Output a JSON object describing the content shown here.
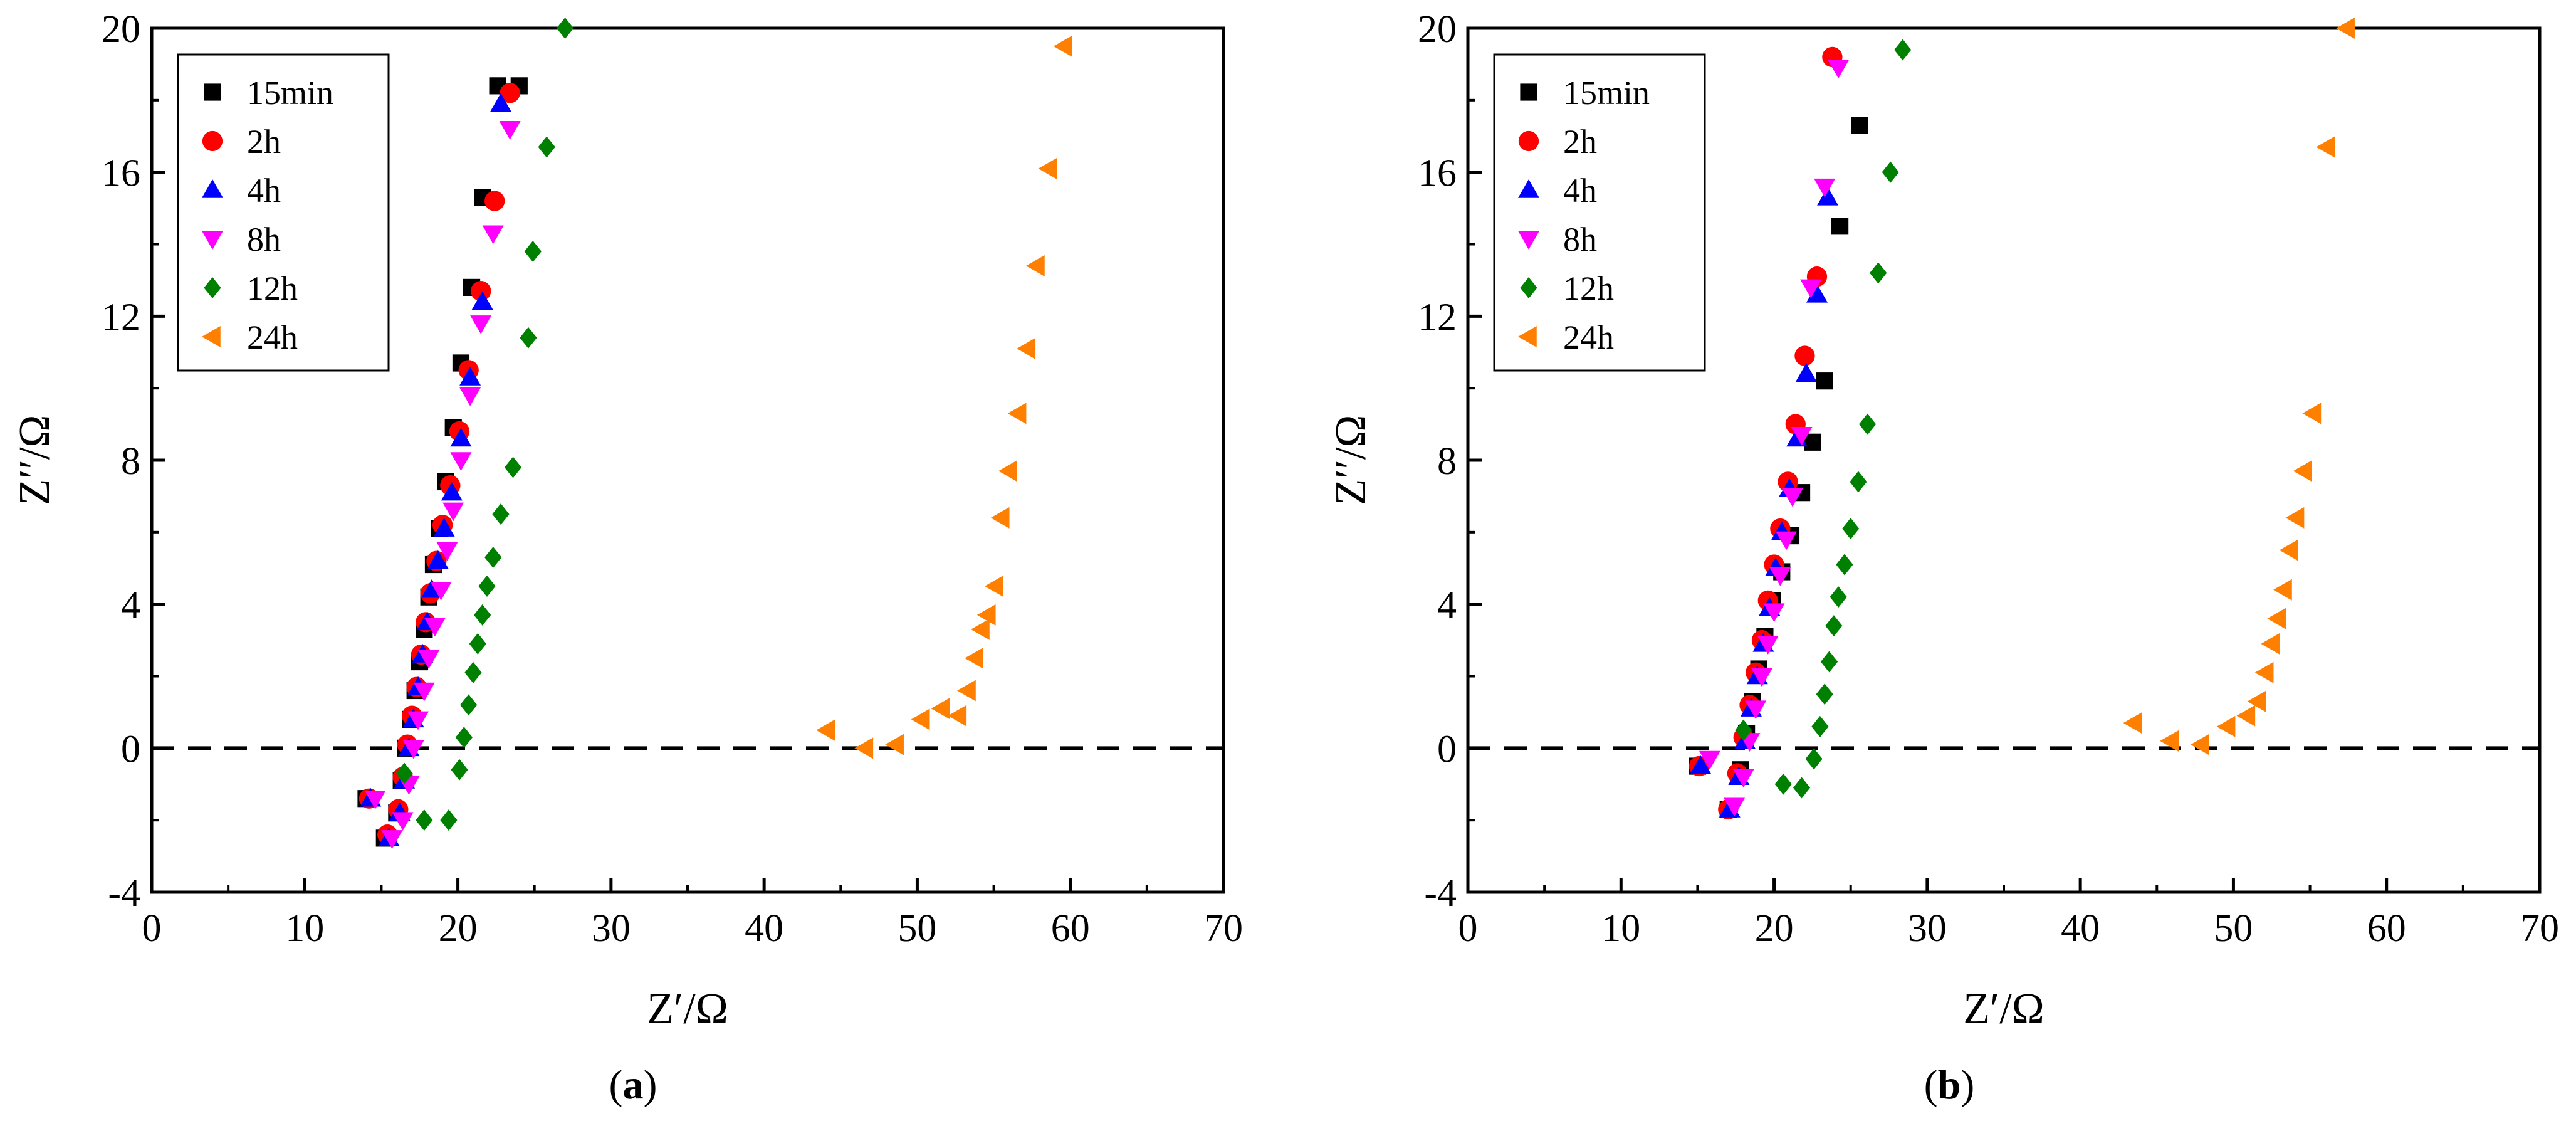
{
  "figure": {
    "panels": [
      "a",
      "b"
    ]
  },
  "chart_data": [
    {
      "type": "scatter",
      "panel_label": "(a)",
      "panel_letter": "a",
      "xlabel": "Z′/Ω",
      "ylabel": "Z′′/Ω",
      "xlim": [
        0,
        70
      ],
      "ylim": [
        -4,
        20
      ],
      "xticks": [
        0,
        10,
        20,
        30,
        40,
        50,
        60,
        70
      ],
      "yticks": [
        -4,
        0,
        4,
        8,
        12,
        16,
        20
      ],
      "reference_line": {
        "y": 0,
        "style": "dashed"
      },
      "legend": [
        "15min",
        "2h",
        "4h",
        "8h",
        "12h",
        "24h"
      ],
      "series": [
        {
          "name": "15min",
          "marker": "square",
          "color": "#000000",
          "x": [
            14.0,
            15.2,
            16.0,
            16.3,
            16.6,
            16.9,
            17.2,
            17.5,
            17.8,
            18.1,
            18.4,
            18.8,
            19.2,
            19.7,
            20.2,
            20.9,
            21.6,
            22.6,
            24.0
          ],
          "y": [
            -1.4,
            -2.5,
            -1.8,
            -0.9,
            0.0,
            0.8,
            1.6,
            2.4,
            3.3,
            4.2,
            5.1,
            6.1,
            7.4,
            8.9,
            10.7,
            12.8,
            15.3,
            18.4,
            18.4
          ]
        },
        {
          "name": "2h",
          "marker": "circle",
          "color": "#ff0000",
          "x": [
            14.2,
            15.4,
            16.1,
            16.4,
            16.7,
            17.0,
            17.3,
            17.6,
            17.9,
            18.2,
            18.6,
            19.0,
            19.5,
            20.1,
            20.7,
            21.5,
            22.4,
            23.4
          ],
          "y": [
            -1.4,
            -2.4,
            -1.7,
            -0.8,
            0.1,
            0.9,
            1.7,
            2.6,
            3.5,
            4.3,
            5.2,
            6.2,
            7.3,
            8.8,
            10.5,
            12.7,
            15.2,
            18.2
          ]
        },
        {
          "name": "4h",
          "marker": "triangle-up",
          "color": "#0000ff",
          "x": [
            14.3,
            15.5,
            16.2,
            16.5,
            16.8,
            17.1,
            17.4,
            17.7,
            18.0,
            18.3,
            18.7,
            19.1,
            19.6,
            20.2,
            20.8,
            21.6,
            22.8
          ],
          "y": [
            -1.4,
            -2.5,
            -1.8,
            -0.9,
            0.0,
            0.8,
            1.7,
            2.6,
            3.5,
            4.4,
            5.2,
            6.1,
            7.1,
            8.6,
            10.3,
            12.4,
            17.9
          ]
        },
        {
          "name": "8h",
          "marker": "triangle-down",
          "color": "#ff00ff",
          "x": [
            14.6,
            15.7,
            16.4,
            16.8,
            17.1,
            17.4,
            17.8,
            18.1,
            18.5,
            18.9,
            19.3,
            19.7,
            20.2,
            20.8,
            21.5,
            22.3,
            23.4
          ],
          "y": [
            -1.4,
            -2.5,
            -2.0,
            -1.0,
            0.0,
            0.8,
            1.6,
            2.5,
            3.4,
            4.4,
            5.5,
            6.6,
            8.0,
            9.8,
            11.8,
            14.3,
            17.2
          ]
        },
        {
          "name": "12h",
          "marker": "diamond",
          "color": "#008000",
          "x": [
            16.5,
            17.8,
            19.4,
            20.1,
            20.4,
            20.7,
            21.0,
            21.3,
            21.6,
            21.9,
            22.3,
            22.8,
            23.6,
            24.6,
            24.9,
            25.8,
            27.0
          ],
          "y": [
            -0.7,
            -2.0,
            -2.0,
            -0.6,
            0.3,
            1.2,
            2.1,
            2.9,
            3.7,
            4.5,
            5.3,
            6.5,
            7.8,
            11.4,
            13.8,
            16.7,
            20.0
          ]
        },
        {
          "name": "24h",
          "marker": "triangle-left",
          "color": "#ff8000",
          "x": [
            44.1,
            46.6,
            48.6,
            50.3,
            51.6,
            52.7,
            53.3,
            53.8,
            54.2,
            54.6,
            55.1,
            55.5,
            56.0,
            56.6,
            57.2,
            57.8,
            58.6,
            59.6
          ],
          "y": [
            0.5,
            0.0,
            0.1,
            0.8,
            1.1,
            0.9,
            1.6,
            2.5,
            3.3,
            3.7,
            4.5,
            6.4,
            7.7,
            9.3,
            11.1,
            13.4,
            16.1,
            19.5
          ]
        }
      ]
    },
    {
      "type": "scatter",
      "panel_label": "(b)",
      "panel_letter": "b",
      "xlabel": "Z′/Ω",
      "ylabel": "Z′′/Ω",
      "xlim": [
        0,
        70
      ],
      "ylim": [
        -4,
        20
      ],
      "xticks": [
        0,
        10,
        20,
        30,
        40,
        50,
        60,
        70
      ],
      "yticks": [
        -4,
        0,
        4,
        8,
        12,
        16,
        20
      ],
      "reference_line": {
        "y": 0,
        "style": "dashed"
      },
      "legend": [
        "15min",
        "2h",
        "4h",
        "8h",
        "12h",
        "24h"
      ],
      "series": [
        {
          "name": "15min",
          "marker": "square",
          "color": "#000000",
          "x": [
            15.0,
            17.0,
            17.8,
            18.2,
            18.6,
            19.0,
            19.4,
            19.9,
            20.5,
            21.1,
            21.8,
            22.5,
            23.3,
            24.3,
            25.6
          ],
          "y": [
            -0.5,
            -1.7,
            -0.6,
            0.4,
            1.3,
            2.2,
            3.1,
            4.1,
            4.9,
            5.9,
            7.1,
            8.5,
            10.2,
            14.5,
            17.3
          ]
        },
        {
          "name": "2h",
          "marker": "circle",
          "color": "#ff0000",
          "x": [
            15.1,
            17.0,
            17.6,
            18.0,
            18.4,
            18.8,
            19.2,
            19.6,
            20.0,
            20.4,
            20.9,
            21.4,
            22.0,
            22.8,
            23.8
          ],
          "y": [
            -0.5,
            -1.7,
            -0.7,
            0.3,
            1.2,
            2.1,
            3.0,
            4.1,
            5.1,
            6.1,
            7.4,
            9.0,
            10.9,
            13.1,
            19.2
          ]
        },
        {
          "name": "4h",
          "marker": "triangle-up",
          "color": "#0000ff",
          "x": [
            15.2,
            17.1,
            17.7,
            18.1,
            18.5,
            18.9,
            19.3,
            19.7,
            20.1,
            20.5,
            21.0,
            21.5,
            22.1,
            22.8,
            23.5
          ],
          "y": [
            -0.5,
            -1.7,
            -0.8,
            0.2,
            1.1,
            2.0,
            2.9,
            3.9,
            5.0,
            6.0,
            7.2,
            8.6,
            10.4,
            12.6,
            15.3
          ]
        },
        {
          "name": "8h",
          "marker": "triangle-down",
          "color": "#ff00ff",
          "x": [
            15.8,
            17.4,
            18.0,
            18.4,
            18.8,
            19.2,
            19.6,
            20.0,
            20.4,
            20.8,
            21.2,
            21.8,
            22.4,
            23.3,
            24.2
          ],
          "y": [
            -0.3,
            -1.6,
            -0.8,
            0.2,
            1.1,
            2.0,
            2.9,
            3.8,
            4.8,
            5.8,
            7.0,
            8.7,
            12.8,
            15.6,
            18.9
          ]
        },
        {
          "name": "12h",
          "marker": "diamond",
          "color": "#008000",
          "x": [
            18.0,
            20.6,
            21.8,
            22.6,
            23.0,
            23.3,
            23.6,
            23.9,
            24.2,
            24.6,
            25.0,
            25.5,
            26.1,
            26.8,
            27.6,
            28.4
          ],
          "y": [
            0.5,
            -1.0,
            -1.1,
            -0.3,
            0.6,
            1.5,
            2.4,
            3.4,
            4.2,
            5.1,
            6.1,
            7.4,
            9.0,
            13.2,
            16.0,
            19.4
          ]
        },
        {
          "name": "24h",
          "marker": "triangle-left",
          "color": "#ff8000",
          "x": [
            43.5,
            45.9,
            47.9,
            49.6,
            50.9,
            51.6,
            52.1,
            52.5,
            52.9,
            53.3,
            53.7,
            54.1,
            54.6,
            55.2,
            56.1,
            57.4
          ],
          "y": [
            0.7,
            0.2,
            0.1,
            0.6,
            0.9,
            1.3,
            2.1,
            2.9,
            3.6,
            4.4,
            5.5,
            6.4,
            7.7,
            9.3,
            16.7,
            20.0
          ]
        }
      ]
    }
  ]
}
